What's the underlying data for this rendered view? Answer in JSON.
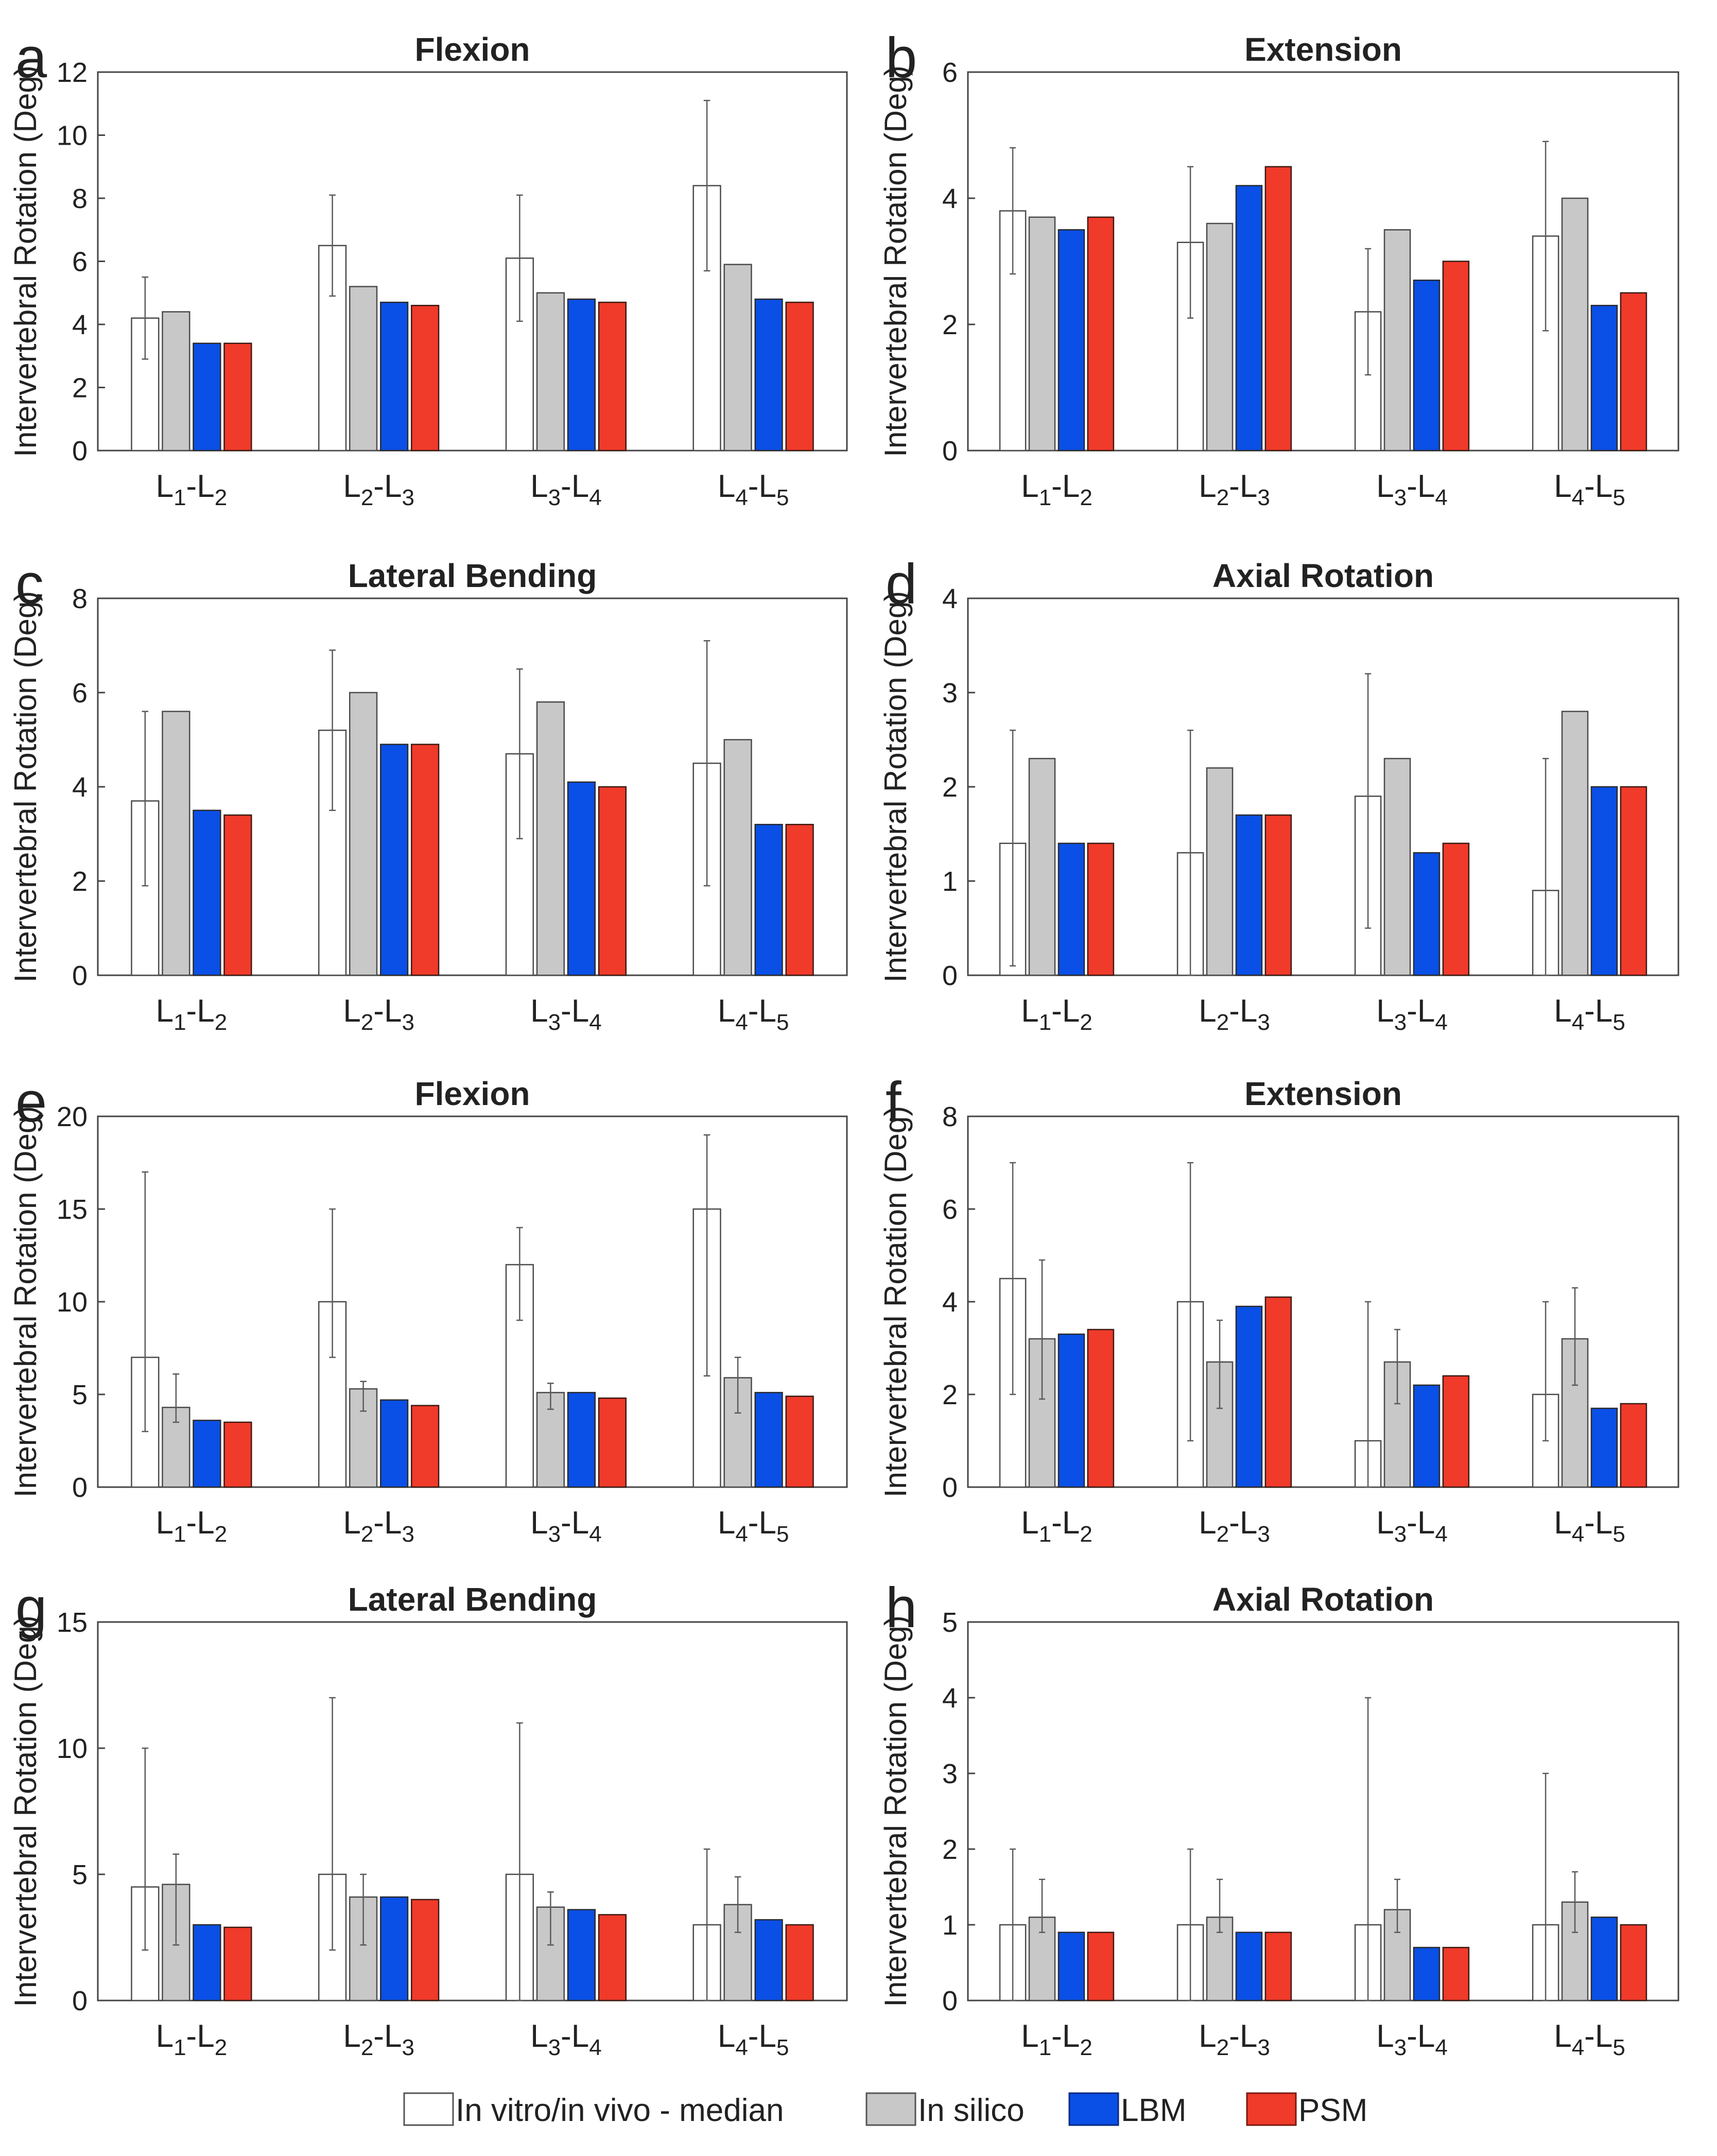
{
  "chart_data": [
    {
      "panel": "a",
      "type": "bar",
      "title": "Flexion",
      "ylabel": "Intervertebral Rotation (Deg)",
      "ylim": [
        0,
        12
      ],
      "yticks": [
        0,
        2,
        4,
        6,
        8,
        10,
        12
      ],
      "categories": [
        "L1-L2",
        "L2-L3",
        "L3-L4",
        "L4-L5"
      ],
      "series": [
        {
          "name": "In vitro/in vivo - median",
          "values": [
            4.2,
            6.5,
            6.1,
            8.4
          ],
          "err_low": [
            2.9,
            4.9,
            4.1,
            5.7
          ],
          "err_high": [
            5.5,
            8.1,
            8.1,
            11.1
          ]
        },
        {
          "name": "In silico",
          "values": [
            4.4,
            5.2,
            5.0,
            5.9
          ]
        },
        {
          "name": "LBM",
          "values": [
            3.4,
            4.7,
            4.8,
            4.8
          ]
        },
        {
          "name": "PSM",
          "values": [
            3.4,
            4.6,
            4.7,
            4.7
          ]
        }
      ]
    },
    {
      "panel": "b",
      "type": "bar",
      "title": "Extension",
      "ylabel": "Intervertebral Rotation (Deg)",
      "ylim": [
        0,
        6
      ],
      "yticks": [
        0,
        2,
        4,
        6
      ],
      "categories": [
        "L1-L2",
        "L2-L3",
        "L3-L4",
        "L4-L5"
      ],
      "series": [
        {
          "name": "In vitro/in vivo - median",
          "values": [
            3.8,
            3.3,
            2.2,
            3.4
          ],
          "err_low": [
            2.8,
            2.1,
            1.2,
            1.9
          ],
          "err_high": [
            4.8,
            4.5,
            3.2,
            4.9
          ]
        },
        {
          "name": "In silico",
          "values": [
            3.7,
            3.6,
            3.5,
            4.0
          ]
        },
        {
          "name": "LBM",
          "values": [
            3.5,
            4.2,
            2.7,
            2.3
          ]
        },
        {
          "name": "PSM",
          "values": [
            3.7,
            4.5,
            3.0,
            2.5
          ]
        }
      ]
    },
    {
      "panel": "c",
      "type": "bar",
      "title": "Lateral Bending",
      "ylabel": "Intervertebral Rotation (Deg)",
      "ylim": [
        0,
        8
      ],
      "yticks": [
        0,
        2,
        4,
        6,
        8
      ],
      "categories": [
        "L1-L2",
        "L2-L3",
        "L3-L4",
        "L4-L5"
      ],
      "series": [
        {
          "name": "In vitro/in vivo - median",
          "values": [
            3.7,
            5.2,
            4.7,
            4.5
          ],
          "err_low": [
            1.9,
            3.5,
            2.9,
            1.9
          ],
          "err_high": [
            5.6,
            6.9,
            6.5,
            7.1
          ]
        },
        {
          "name": "In silico",
          "values": [
            5.6,
            6.0,
            5.8,
            5.0
          ]
        },
        {
          "name": "LBM",
          "values": [
            3.5,
            4.9,
            4.1,
            3.2
          ]
        },
        {
          "name": "PSM",
          "values": [
            3.4,
            4.9,
            4.0,
            3.2
          ]
        }
      ]
    },
    {
      "panel": "d",
      "type": "bar",
      "title": "Axial Rotation",
      "ylabel": "Intervertebral Rotation (Deg)",
      "ylim": [
        0,
        4
      ],
      "yticks": [
        0,
        1,
        2,
        3,
        4
      ],
      "categories": [
        "L1-L2",
        "L2-L3",
        "L3-L4",
        "L4-L5"
      ],
      "series": [
        {
          "name": "In vitro/in vivo - median",
          "values": [
            1.4,
            1.3,
            1.9,
            0.9
          ],
          "err_low": [
            0.1,
            0.0,
            0.5,
            0.0
          ],
          "err_high": [
            2.6,
            2.6,
            3.2,
            2.3
          ]
        },
        {
          "name": "In silico",
          "values": [
            2.3,
            2.2,
            2.3,
            2.8
          ]
        },
        {
          "name": "LBM",
          "values": [
            1.4,
            1.7,
            1.3,
            2.0
          ]
        },
        {
          "name": "PSM",
          "values": [
            1.4,
            1.7,
            1.4,
            2.0
          ]
        }
      ]
    },
    {
      "panel": "e",
      "type": "bar",
      "title": "Flexion",
      "ylabel": "Intervertebral Rotation (Deg)",
      "ylim": [
        0,
        20
      ],
      "yticks": [
        0,
        5,
        10,
        15,
        20
      ],
      "categories": [
        "L1-L2",
        "L2-L3",
        "L3-L4",
        "L4-L5"
      ],
      "series": [
        {
          "name": "In vitro/in vivo - median",
          "values": [
            7.0,
            10.0,
            12.0,
            15.0
          ],
          "err_low": [
            3.0,
            7.0,
            9.0,
            6.0
          ],
          "err_high": [
            17.0,
            15.0,
            14.0,
            19.0
          ]
        },
        {
          "name": "In silico",
          "values": [
            4.3,
            5.3,
            5.1,
            5.9
          ],
          "err_low": [
            3.5,
            4.1,
            4.2,
            4.0
          ],
          "err_high": [
            6.1,
            5.7,
            5.6,
            7.0
          ]
        },
        {
          "name": "LBM",
          "values": [
            3.6,
            4.7,
            5.1,
            5.1
          ]
        },
        {
          "name": "PSM",
          "values": [
            3.5,
            4.4,
            4.8,
            4.9
          ]
        }
      ]
    },
    {
      "panel": "f",
      "type": "bar",
      "title": "Extension",
      "ylabel": "Intervertebral Rotation (Deg)",
      "ylim": [
        0,
        8
      ],
      "yticks": [
        0,
        2,
        4,
        6,
        8
      ],
      "categories": [
        "L1-L2",
        "L2-L3",
        "L3-L4",
        "L4-L5"
      ],
      "series": [
        {
          "name": "In vitro/in vivo - median",
          "values": [
            4.5,
            4.0,
            1.0,
            2.0
          ],
          "err_low": [
            2.0,
            1.0,
            0.0,
            1.0
          ],
          "err_high": [
            7.0,
            7.0,
            4.0,
            4.0
          ]
        },
        {
          "name": "In silico",
          "values": [
            3.2,
            2.7,
            2.7,
            3.2
          ],
          "err_low": [
            1.9,
            1.7,
            1.8,
            2.2
          ],
          "err_high": [
            4.9,
            3.6,
            3.4,
            4.3
          ]
        },
        {
          "name": "LBM",
          "values": [
            3.3,
            3.9,
            2.2,
            1.7
          ]
        },
        {
          "name": "PSM",
          "values": [
            3.4,
            4.1,
            2.4,
            1.8
          ]
        }
      ]
    },
    {
      "panel": "g",
      "type": "bar",
      "title": "Lateral Bending",
      "ylabel": "Intervertebral Rotation (Deg)",
      "ylim": [
        0,
        15
      ],
      "yticks": [
        0,
        5,
        10,
        15
      ],
      "categories": [
        "L1-L2",
        "L2-L3",
        "L3-L4",
        "L4-L5"
      ],
      "series": [
        {
          "name": "In vitro/in vivo - median",
          "values": [
            4.5,
            5.0,
            5.0,
            3.0
          ],
          "err_low": [
            2.0,
            2.0,
            0.0,
            0.0
          ],
          "err_high": [
            10.0,
            12.0,
            11.0,
            6.0
          ]
        },
        {
          "name": "In silico",
          "values": [
            4.6,
            4.1,
            3.7,
            3.8
          ],
          "err_low": [
            2.2,
            2.2,
            2.2,
            2.7
          ],
          "err_high": [
            5.8,
            5.0,
            4.3,
            4.9
          ]
        },
        {
          "name": "LBM",
          "values": [
            3.0,
            4.1,
            3.6,
            3.2
          ]
        },
        {
          "name": "PSM",
          "values": [
            2.9,
            4.0,
            3.4,
            3.0
          ]
        }
      ]
    },
    {
      "panel": "h",
      "type": "bar",
      "title": "Axial Rotation",
      "ylabel": "Intervertebral Rotation (Deg)",
      "ylim": [
        0,
        5
      ],
      "yticks": [
        0,
        1,
        2,
        3,
        4,
        5
      ],
      "categories": [
        "L1-L2",
        "L2-L3",
        "L3-L4",
        "L4-L5"
      ],
      "series": [
        {
          "name": "In vitro/in vivo - median",
          "values": [
            1.0,
            1.0,
            1.0,
            1.0
          ],
          "err_low": [
            0.0,
            0.0,
            0.0,
            0.0
          ],
          "err_high": [
            2.0,
            2.0,
            4.0,
            3.0
          ]
        },
        {
          "name": "In silico",
          "values": [
            1.1,
            1.1,
            1.2,
            1.3
          ],
          "err_low": [
            0.9,
            0.9,
            0.9,
            0.9
          ],
          "err_high": [
            1.6,
            1.6,
            1.6,
            1.7
          ]
        },
        {
          "name": "LBM",
          "values": [
            0.9,
            0.9,
            0.7,
            1.1
          ]
        },
        {
          "name": "PSM",
          "values": [
            0.9,
            0.9,
            0.7,
            1.0
          ]
        }
      ]
    }
  ],
  "legend": {
    "position": "bottom-center",
    "items": [
      {
        "label": "In vitro/in vivo - median",
        "color": "#ffffff",
        "border": "#555555"
      },
      {
        "label": "In silico",
        "color": "#c8c8c8",
        "border": "#555555"
      },
      {
        "label": "LBM",
        "color": "#0a4fe6",
        "border": "#0a2a80"
      },
      {
        "label": "PSM",
        "color": "#f03a2a",
        "border": "#7a1a10"
      }
    ]
  },
  "colors": {
    "series": [
      "#ffffff",
      "#c8c8c8",
      "#0a4fe6",
      "#f03a2a"
    ],
    "series_stroke": [
      "#4a4a4a",
      "#4a4a4a",
      "#2a2a2a",
      "#3a1a12"
    ],
    "axis": "#444444",
    "errorbar": "#5a5a5a"
  }
}
